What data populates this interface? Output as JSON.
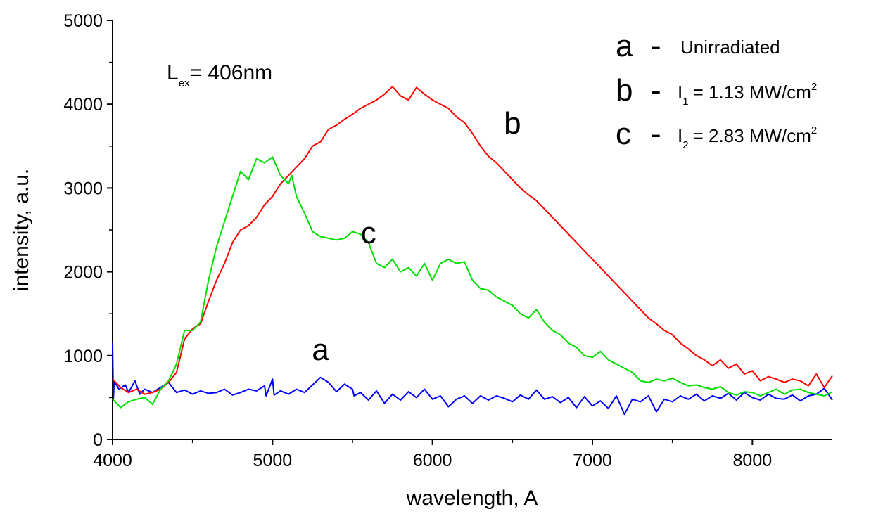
{
  "chart_data": {
    "type": "line",
    "xlabel": "wavelength, A",
    "ylabel": "intensity, a.u.",
    "xlim": [
      4000,
      8500
    ],
    "ylim": [
      0,
      5000
    ],
    "xticks": [
      4000,
      5000,
      6000,
      7000,
      8000
    ],
    "yticks": [
      0,
      1000,
      2000,
      3000,
      4000,
      5000
    ],
    "grid": false,
    "annotation": {
      "main": "L",
      "subscript": "ex",
      "rest": "= 406nm"
    },
    "legend": [
      {
        "letter": "a",
        "dash": "-",
        "text": "Unirradiated"
      },
      {
        "letter": "b",
        "dash": "-",
        "main": "I",
        "subscript": "1",
        "rest": "= 1.13 MW/cm",
        "superscript": "2"
      },
      {
        "letter": "c",
        "dash": "-",
        "main": "I",
        "subscript": "2",
        "rest": "= 2.83 MW/cm",
        "superscript": "2"
      }
    ],
    "series": [
      {
        "name": "a",
        "color": "#0000ff",
        "points": [
          [
            4000,
            1150
          ],
          [
            4005,
            480
          ],
          [
            4010,
            700
          ],
          [
            4040,
            600
          ],
          [
            4080,
            650
          ],
          [
            4100,
            560
          ],
          [
            4140,
            700
          ],
          [
            4170,
            540
          ],
          [
            4200,
            600
          ],
          [
            4250,
            560
          ],
          [
            4300,
            620
          ],
          [
            4350,
            680
          ],
          [
            4400,
            560
          ],
          [
            4450,
            590
          ],
          [
            4500,
            540
          ],
          [
            4550,
            580
          ],
          [
            4600,
            550
          ],
          [
            4650,
            560
          ],
          [
            4700,
            600
          ],
          [
            4750,
            530
          ],
          [
            4800,
            560
          ],
          [
            4850,
            600
          ],
          [
            4900,
            580
          ],
          [
            4950,
            640
          ],
          [
            4960,
            520
          ],
          [
            5000,
            720
          ],
          [
            5010,
            530
          ],
          [
            5050,
            580
          ],
          [
            5100,
            540
          ],
          [
            5150,
            600
          ],
          [
            5200,
            560
          ],
          [
            5250,
            650
          ],
          [
            5300,
            740
          ],
          [
            5350,
            680
          ],
          [
            5400,
            570
          ],
          [
            5450,
            660
          ],
          [
            5500,
            600
          ],
          [
            5510,
            520
          ],
          [
            5550,
            560
          ],
          [
            5600,
            470
          ],
          [
            5650,
            580
          ],
          [
            5700,
            430
          ],
          [
            5750,
            540
          ],
          [
            5800,
            470
          ],
          [
            5850,
            570
          ],
          [
            5900,
            500
          ],
          [
            5950,
            600
          ],
          [
            6000,
            480
          ],
          [
            6050,
            520
          ],
          [
            6100,
            390
          ],
          [
            6150,
            480
          ],
          [
            6200,
            520
          ],
          [
            6250,
            430
          ],
          [
            6300,
            520
          ],
          [
            6350,
            470
          ],
          [
            6400,
            520
          ],
          [
            6450,
            490
          ],
          [
            6500,
            450
          ],
          [
            6550,
            530
          ],
          [
            6600,
            480
          ],
          [
            6650,
            590
          ],
          [
            6700,
            480
          ],
          [
            6750,
            510
          ],
          [
            6800,
            440
          ],
          [
            6850,
            500
          ],
          [
            6900,
            380
          ],
          [
            6950,
            510
          ],
          [
            7000,
            400
          ],
          [
            7050,
            460
          ],
          [
            7100,
            370
          ],
          [
            7150,
            520
          ],
          [
            7200,
            300
          ],
          [
            7250,
            480
          ],
          [
            7300,
            450
          ],
          [
            7350,
            520
          ],
          [
            7400,
            330
          ],
          [
            7450,
            480
          ],
          [
            7500,
            450
          ],
          [
            7550,
            520
          ],
          [
            7600,
            480
          ],
          [
            7650,
            540
          ],
          [
            7700,
            460
          ],
          [
            7750,
            520
          ],
          [
            7800,
            490
          ],
          [
            7850,
            550
          ],
          [
            7900,
            470
          ],
          [
            7950,
            560
          ],
          [
            8000,
            500
          ],
          [
            8050,
            470
          ],
          [
            8100,
            540
          ],
          [
            8150,
            490
          ],
          [
            8200,
            480
          ],
          [
            8250,
            530
          ],
          [
            8300,
            460
          ],
          [
            8350,
            520
          ],
          [
            8400,
            540
          ],
          [
            8450,
            610
          ],
          [
            8500,
            470
          ]
        ]
      },
      {
        "name": "b",
        "color": "#ff0000",
        "points": [
          [
            4000,
            720
          ],
          [
            4050,
            620
          ],
          [
            4100,
            560
          ],
          [
            4150,
            600
          ],
          [
            4200,
            540
          ],
          [
            4250,
            560
          ],
          [
            4300,
            600
          ],
          [
            4350,
            680
          ],
          [
            4400,
            800
          ],
          [
            4450,
            1200
          ],
          [
            4500,
            1320
          ],
          [
            4550,
            1380
          ],
          [
            4600,
            1650
          ],
          [
            4650,
            1900
          ],
          [
            4700,
            2100
          ],
          [
            4750,
            2350
          ],
          [
            4800,
            2500
          ],
          [
            4850,
            2550
          ],
          [
            4900,
            2650
          ],
          [
            4950,
            2800
          ],
          [
            5000,
            2900
          ],
          [
            5050,
            3050
          ],
          [
            5100,
            3150
          ],
          [
            5150,
            3250
          ],
          [
            5200,
            3350
          ],
          [
            5250,
            3500
          ],
          [
            5300,
            3550
          ],
          [
            5350,
            3700
          ],
          [
            5400,
            3750
          ],
          [
            5450,
            3820
          ],
          [
            5500,
            3880
          ],
          [
            5550,
            3950
          ],
          [
            5600,
            4000
          ],
          [
            5650,
            4050
          ],
          [
            5700,
            4120
          ],
          [
            5750,
            4210
          ],
          [
            5800,
            4100
          ],
          [
            5850,
            4050
          ],
          [
            5900,
            4200
          ],
          [
            5950,
            4120
          ],
          [
            6000,
            4050
          ],
          [
            6050,
            4000
          ],
          [
            6100,
            3950
          ],
          [
            6150,
            3850
          ],
          [
            6200,
            3780
          ],
          [
            6250,
            3650
          ],
          [
            6300,
            3500
          ],
          [
            6350,
            3380
          ],
          [
            6400,
            3300
          ],
          [
            6450,
            3200
          ],
          [
            6500,
            3100
          ],
          [
            6550,
            3000
          ],
          [
            6600,
            2920
          ],
          [
            6650,
            2850
          ],
          [
            6700,
            2750
          ],
          [
            6750,
            2650
          ],
          [
            6800,
            2550
          ],
          [
            6850,
            2450
          ],
          [
            6900,
            2350
          ],
          [
            6950,
            2250
          ],
          [
            7000,
            2150
          ],
          [
            7050,
            2050
          ],
          [
            7100,
            1950
          ],
          [
            7150,
            1850
          ],
          [
            7200,
            1750
          ],
          [
            7250,
            1650
          ],
          [
            7300,
            1550
          ],
          [
            7350,
            1450
          ],
          [
            7400,
            1380
          ],
          [
            7450,
            1300
          ],
          [
            7500,
            1250
          ],
          [
            7550,
            1150
          ],
          [
            7600,
            1080
          ],
          [
            7650,
            1000
          ],
          [
            7700,
            950
          ],
          [
            7750,
            880
          ],
          [
            7800,
            950
          ],
          [
            7850,
            850
          ],
          [
            7900,
            900
          ],
          [
            7950,
            780
          ],
          [
            8000,
            820
          ],
          [
            8050,
            700
          ],
          [
            8100,
            750
          ],
          [
            8150,
            720
          ],
          [
            8200,
            680
          ],
          [
            8250,
            720
          ],
          [
            8300,
            700
          ],
          [
            8350,
            640
          ],
          [
            8400,
            780
          ],
          [
            8450,
            620
          ],
          [
            8500,
            760
          ]
        ]
      },
      {
        "name": "c",
        "color": "#00dd00",
        "points": [
          [
            4000,
            480
          ],
          [
            4050,
            380
          ],
          [
            4100,
            450
          ],
          [
            4150,
            480
          ],
          [
            4200,
            500
          ],
          [
            4250,
            420
          ],
          [
            4300,
            600
          ],
          [
            4350,
            700
          ],
          [
            4400,
            900
          ],
          [
            4450,
            1300
          ],
          [
            4500,
            1300
          ],
          [
            4550,
            1400
          ],
          [
            4600,
            1900
          ],
          [
            4650,
            2300
          ],
          [
            4700,
            2600
          ],
          [
            4750,
            2900
          ],
          [
            4800,
            3200
          ],
          [
            4850,
            3100
          ],
          [
            4900,
            3350
          ],
          [
            4950,
            3300
          ],
          [
            5000,
            3370
          ],
          [
            5050,
            3150
          ],
          [
            5100,
            3050
          ],
          [
            5120,
            3150
          ],
          [
            5150,
            2900
          ],
          [
            5200,
            2700
          ],
          [
            5250,
            2480
          ],
          [
            5300,
            2420
          ],
          [
            5350,
            2400
          ],
          [
            5400,
            2380
          ],
          [
            5450,
            2400
          ],
          [
            5500,
            2480
          ],
          [
            5550,
            2450
          ],
          [
            5600,
            2350
          ],
          [
            5650,
            2100
          ],
          [
            5700,
            2050
          ],
          [
            5750,
            2150
          ],
          [
            5800,
            2000
          ],
          [
            5850,
            2050
          ],
          [
            5900,
            1950
          ],
          [
            5950,
            2100
          ],
          [
            6000,
            1900
          ],
          [
            6050,
            2100
          ],
          [
            6100,
            2150
          ],
          [
            6150,
            2100
          ],
          [
            6200,
            2120
          ],
          [
            6250,
            1900
          ],
          [
            6300,
            1800
          ],
          [
            6350,
            1780
          ],
          [
            6400,
            1700
          ],
          [
            6450,
            1650
          ],
          [
            6500,
            1600
          ],
          [
            6550,
            1500
          ],
          [
            6600,
            1450
          ],
          [
            6650,
            1550
          ],
          [
            6700,
            1400
          ],
          [
            6750,
            1300
          ],
          [
            6800,
            1250
          ],
          [
            6850,
            1150
          ],
          [
            6900,
            1100
          ],
          [
            6950,
            1000
          ],
          [
            7000,
            980
          ],
          [
            7050,
            1050
          ],
          [
            7100,
            950
          ],
          [
            7150,
            900
          ],
          [
            7200,
            850
          ],
          [
            7250,
            800
          ],
          [
            7300,
            700
          ],
          [
            7350,
            680
          ],
          [
            7400,
            720
          ],
          [
            7450,
            700
          ],
          [
            7500,
            730
          ],
          [
            7550,
            680
          ],
          [
            7600,
            640
          ],
          [
            7650,
            650
          ],
          [
            7700,
            620
          ],
          [
            7750,
            600
          ],
          [
            7800,
            630
          ],
          [
            7850,
            560
          ],
          [
            7900,
            530
          ],
          [
            7950,
            570
          ],
          [
            8000,
            560
          ],
          [
            8050,
            520
          ],
          [
            8100,
            560
          ],
          [
            8150,
            600
          ],
          [
            8200,
            540
          ],
          [
            8250,
            590
          ],
          [
            8300,
            600
          ],
          [
            8350,
            560
          ],
          [
            8400,
            540
          ],
          [
            8450,
            520
          ],
          [
            8500,
            570
          ]
        ]
      }
    ],
    "curve_labels": [
      {
        "text": "a",
        "x": 5300,
        "y": 950
      },
      {
        "text": "b",
        "x": 6500,
        "y": 3650
      },
      {
        "text": "c",
        "x": 5600,
        "y": 2340
      }
    ]
  }
}
